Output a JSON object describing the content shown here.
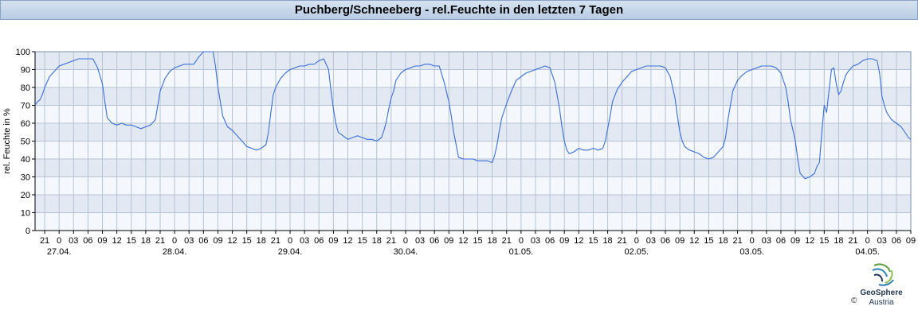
{
  "header": {
    "title": "Puchberg/Schneeberg - rel.Feuchte in den letzten 7 Tagen"
  },
  "logo": {
    "name": "GeoSphere",
    "sub": "Austria",
    "copyright": "©"
  },
  "chart_data": {
    "type": "line",
    "ylabel": "rel. Feuchte in %",
    "ylim": [
      0,
      100
    ],
    "yticks": [
      0,
      10,
      20,
      30,
      40,
      50,
      60,
      70,
      80,
      90,
      100
    ],
    "x_unit": "hours since 26.04. 19:00",
    "x_range": [
      0,
      182
    ],
    "hour_ticks": [
      {
        "x": 2,
        "label": "21"
      },
      {
        "x": 5,
        "label": "0"
      },
      {
        "x": 8,
        "label": "03"
      },
      {
        "x": 11,
        "label": "06"
      },
      {
        "x": 14,
        "label": "09"
      },
      {
        "x": 17,
        "label": "12"
      },
      {
        "x": 20,
        "label": "15"
      },
      {
        "x": 23,
        "label": "18"
      },
      {
        "x": 26,
        "label": "21"
      },
      {
        "x": 29,
        "label": "0"
      },
      {
        "x": 32,
        "label": "03"
      },
      {
        "x": 35,
        "label": "06"
      },
      {
        "x": 38,
        "label": "09"
      },
      {
        "x": 41,
        "label": "12"
      },
      {
        "x": 44,
        "label": "15"
      },
      {
        "x": 47,
        "label": "18"
      },
      {
        "x": 50,
        "label": "21"
      },
      {
        "x": 53,
        "label": "0"
      },
      {
        "x": 56,
        "label": "03"
      },
      {
        "x": 59,
        "label": "06"
      },
      {
        "x": 62,
        "label": "09"
      },
      {
        "x": 65,
        "label": "12"
      },
      {
        "x": 68,
        "label": "15"
      },
      {
        "x": 71,
        "label": "18"
      },
      {
        "x": 74,
        "label": "21"
      },
      {
        "x": 77,
        "label": "0"
      },
      {
        "x": 80,
        "label": "03"
      },
      {
        "x": 83,
        "label": "06"
      },
      {
        "x": 86,
        "label": "09"
      },
      {
        "x": 89,
        "label": "12"
      },
      {
        "x": 92,
        "label": "15"
      },
      {
        "x": 95,
        "label": "18"
      },
      {
        "x": 98,
        "label": "21"
      },
      {
        "x": 101,
        "label": "0"
      },
      {
        "x": 104,
        "label": "03"
      },
      {
        "x": 107,
        "label": "06"
      },
      {
        "x": 110,
        "label": "09"
      },
      {
        "x": 113,
        "label": "12"
      },
      {
        "x": 116,
        "label": "15"
      },
      {
        "x": 119,
        "label": "18"
      },
      {
        "x": 122,
        "label": "21"
      },
      {
        "x": 125,
        "label": "0"
      },
      {
        "x": 128,
        "label": "03"
      },
      {
        "x": 131,
        "label": "06"
      },
      {
        "x": 134,
        "label": "09"
      },
      {
        "x": 137,
        "label": "12"
      },
      {
        "x": 140,
        "label": "15"
      },
      {
        "x": 143,
        "label": "18"
      },
      {
        "x": 146,
        "label": "21"
      },
      {
        "x": 149,
        "label": "0"
      },
      {
        "x": 152,
        "label": "03"
      },
      {
        "x": 155,
        "label": "06"
      },
      {
        "x": 158,
        "label": "09"
      },
      {
        "x": 161,
        "label": "12"
      },
      {
        "x": 164,
        "label": "15"
      },
      {
        "x": 167,
        "label": "18"
      },
      {
        "x": 170,
        "label": "21"
      },
      {
        "x": 173,
        "label": "0"
      },
      {
        "x": 176,
        "label": "03"
      },
      {
        "x": 179,
        "label": "06"
      },
      {
        "x": 182,
        "label": "09"
      }
    ],
    "date_labels": [
      {
        "x": 5,
        "label": "27.04."
      },
      {
        "x": 29,
        "label": "28.04."
      },
      {
        "x": 53,
        "label": "29.04."
      },
      {
        "x": 77,
        "label": "30.04."
      },
      {
        "x": 101,
        "label": "01.05."
      },
      {
        "x": 125,
        "label": "02.05."
      },
      {
        "x": 149,
        "label": "03.05."
      },
      {
        "x": 173,
        "label": "04.05."
      }
    ],
    "series": [
      {
        "color": "#3a6fd8",
        "points": [
          [
            0,
            70
          ],
          [
            0.5,
            72
          ],
          [
            1,
            73
          ],
          [
            1.5,
            76
          ],
          [
            2,
            80
          ],
          [
            3,
            86
          ],
          [
            4,
            89
          ],
          [
            5,
            92
          ],
          [
            6,
            93
          ],
          [
            7,
            94
          ],
          [
            8,
            95
          ],
          [
            9,
            96
          ],
          [
            10,
            96
          ],
          [
            11,
            96
          ],
          [
            12,
            96
          ],
          [
            13,
            91
          ],
          [
            14,
            82
          ],
          [
            14.5,
            72
          ],
          [
            15,
            63
          ],
          [
            16,
            60
          ],
          [
            17,
            59
          ],
          [
            18,
            60
          ],
          [
            19,
            59
          ],
          [
            20,
            59
          ],
          [
            21,
            58
          ],
          [
            22,
            57
          ],
          [
            23,
            58
          ],
          [
            24,
            59
          ],
          [
            25,
            62
          ],
          [
            25.5,
            70
          ],
          [
            26,
            78
          ],
          [
            27,
            85
          ],
          [
            28,
            89
          ],
          [
            29,
            91
          ],
          [
            30,
            92
          ],
          [
            31,
            93
          ],
          [
            32,
            93
          ],
          [
            33,
            93
          ],
          [
            34,
            97
          ],
          [
            35,
            100
          ],
          [
            36,
            100
          ],
          [
            37,
            100
          ],
          [
            37.5,
            92
          ],
          [
            38,
            80
          ],
          [
            38.5,
            72
          ],
          [
            39,
            64
          ],
          [
            40,
            58
          ],
          [
            41,
            56
          ],
          [
            42,
            53
          ],
          [
            43,
            50
          ],
          [
            44,
            47
          ],
          [
            45,
            46
          ],
          [
            46,
            45
          ],
          [
            47,
            46
          ],
          [
            48,
            48
          ],
          [
            48.5,
            55
          ],
          [
            49,
            66
          ],
          [
            49.5,
            76
          ],
          [
            50,
            80
          ],
          [
            51,
            85
          ],
          [
            52,
            88
          ],
          [
            53,
            90
          ],
          [
            54,
            91
          ],
          [
            55,
            92
          ],
          [
            56,
            92
          ],
          [
            57,
            93
          ],
          [
            58,
            93
          ],
          [
            59,
            95
          ],
          [
            60,
            96
          ],
          [
            61,
            90
          ],
          [
            61.5,
            78
          ],
          [
            62,
            68
          ],
          [
            62.5,
            60
          ],
          [
            63,
            55
          ],
          [
            64,
            53
          ],
          [
            65,
            51
          ],
          [
            66,
            52
          ],
          [
            67,
            53
          ],
          [
            68,
            52
          ],
          [
            69,
            51
          ],
          [
            70,
            51
          ],
          [
            71,
            50
          ],
          [
            72,
            52
          ],
          [
            72.5,
            56
          ],
          [
            73,
            61
          ],
          [
            73.5,
            68
          ],
          [
            74,
            74
          ],
          [
            74.5,
            78
          ],
          [
            75,
            84
          ],
          [
            76,
            88
          ],
          [
            77,
            90
          ],
          [
            78,
            91
          ],
          [
            79,
            92
          ],
          [
            80,
            92
          ],
          [
            81,
            93
          ],
          [
            82,
            93
          ],
          [
            83,
            92
          ],
          [
            84,
            92
          ],
          [
            85,
            83
          ],
          [
            86,
            72
          ],
          [
            86.5,
            64
          ],
          [
            87,
            55
          ],
          [
            87.5,
            48
          ],
          [
            88,
            41
          ],
          [
            89,
            40
          ],
          [
            90,
            40
          ],
          [
            91,
            40
          ],
          [
            92,
            39
          ],
          [
            93,
            39
          ],
          [
            94,
            39
          ],
          [
            95,
            38
          ],
          [
            95.5,
            42
          ],
          [
            96,
            48
          ],
          [
            96.5,
            56
          ],
          [
            97,
            63
          ],
          [
            98,
            71
          ],
          [
            99,
            78
          ],
          [
            100,
            84
          ],
          [
            101,
            86
          ],
          [
            102,
            88
          ],
          [
            103,
            89
          ],
          [
            104,
            90
          ],
          [
            105,
            91
          ],
          [
            106,
            92
          ],
          [
            107,
            91
          ],
          [
            108,
            83
          ],
          [
            109,
            68
          ],
          [
            109.5,
            58
          ],
          [
            110,
            50
          ],
          [
            110.5,
            45
          ],
          [
            111,
            43
          ],
          [
            112,
            44
          ],
          [
            113,
            46
          ],
          [
            114,
            45
          ],
          [
            115,
            45
          ],
          [
            116,
            46
          ],
          [
            117,
            45
          ],
          [
            118,
            46
          ],
          [
            118.5,
            50
          ],
          [
            119,
            57
          ],
          [
            119.5,
            64
          ],
          [
            120,
            72
          ],
          [
            121,
            79
          ],
          [
            122,
            83
          ],
          [
            123,
            86
          ],
          [
            124,
            89
          ],
          [
            125,
            90
          ],
          [
            126,
            91
          ],
          [
            127,
            92
          ],
          [
            128,
            92
          ],
          [
            129,
            92
          ],
          [
            130,
            92
          ],
          [
            131,
            91
          ],
          [
            132,
            86
          ],
          [
            133,
            74
          ],
          [
            133.5,
            64
          ],
          [
            134,
            55
          ],
          [
            134.5,
            50
          ],
          [
            135,
            47
          ],
          [
            136,
            45
          ],
          [
            137,
            44
          ],
          [
            138,
            43
          ],
          [
            139,
            41
          ],
          [
            140,
            40
          ],
          [
            141,
            41
          ],
          [
            142,
            44
          ],
          [
            143,
            47
          ],
          [
            143.5,
            52
          ],
          [
            144,
            62
          ],
          [
            144.5,
            70
          ],
          [
            145,
            78
          ],
          [
            146,
            84
          ],
          [
            147,
            87
          ],
          [
            148,
            89
          ],
          [
            149,
            90
          ],
          [
            150,
            91
          ],
          [
            151,
            92
          ],
          [
            152,
            92
          ],
          [
            153,
            92
          ],
          [
            154,
            91
          ],
          [
            155,
            88
          ],
          [
            156,
            80
          ],
          [
            156.5,
            72
          ],
          [
            157,
            62
          ],
          [
            157.5,
            56
          ],
          [
            158,
            50
          ],
          [
            158.5,
            40
          ],
          [
            159,
            32
          ],
          [
            160,
            29
          ],
          [
            161,
            30
          ],
          [
            162,
            32
          ],
          [
            162.5,
            36
          ],
          [
            163,
            38
          ],
          [
            163.5,
            55
          ],
          [
            164,
            70
          ],
          [
            164.5,
            66
          ],
          [
            165,
            78
          ],
          [
            165.5,
            90
          ],
          [
            166,
            91
          ],
          [
            166.5,
            82
          ],
          [
            167,
            76
          ],
          [
            167.5,
            78
          ],
          [
            168,
            83
          ],
          [
            168.5,
            87
          ],
          [
            169,
            89
          ],
          [
            170,
            92
          ],
          [
            171,
            93
          ],
          [
            172,
            95
          ],
          [
            173,
            96
          ],
          [
            174,
            96
          ],
          [
            175,
            95
          ],
          [
            175.5,
            88
          ],
          [
            176,
            75
          ],
          [
            176.5,
            70
          ],
          [
            177,
            66
          ],
          [
            178,
            62
          ],
          [
            179,
            60
          ],
          [
            180,
            58
          ],
          [
            181,
            54
          ],
          [
            181.5,
            52
          ],
          [
            182,
            51
          ]
        ]
      }
    ]
  }
}
